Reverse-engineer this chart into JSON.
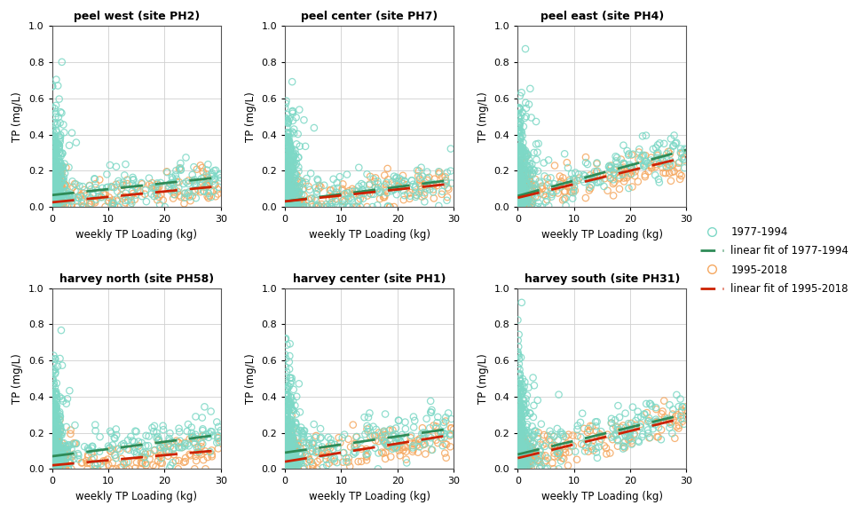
{
  "titles": [
    "peel west (site PH2)",
    "peel center (site PH7)",
    "peel east (site PH4)",
    "harvey north (site PH58)",
    "harvey center (site PH1)",
    "harvey south (site PH31)"
  ],
  "xlabel": "weekly TP Loading (kg)",
  "ylabel": "TP (mg/L)",
  "xlim": [
    0,
    30
  ],
  "ylim": [
    0,
    1
  ],
  "yticks": [
    0,
    0.2,
    0.4,
    0.6,
    0.8,
    1
  ],
  "xticks": [
    0,
    10,
    20,
    30
  ],
  "color_early": "#7DD8C6",
  "color_late": "#F5A860",
  "color_line_early": "#2E8B57",
  "color_line_late": "#CC2200",
  "figsize": [
    9.79,
    5.87
  ],
  "dpi": 100,
  "fits": {
    "peel_west": {
      "early": [
        0.065,
        0.0033
      ],
      "late": [
        0.025,
        0.003
      ]
    },
    "peel_center": {
      "early": [
        0.03,
        0.004
      ],
      "late": [
        0.03,
        0.0033
      ]
    },
    "peel_east": {
      "early": [
        0.06,
        0.0085
      ],
      "late": [
        0.05,
        0.0075
      ]
    },
    "harvey_north": {
      "early": [
        0.07,
        0.004
      ],
      "late": [
        0.02,
        0.0028
      ]
    },
    "harvey_center": {
      "early": [
        0.09,
        0.0045
      ],
      "late": [
        0.04,
        0.005
      ]
    },
    "harvey_south": {
      "early": [
        0.08,
        0.0075
      ],
      "late": [
        0.06,
        0.0075
      ]
    }
  },
  "seeds": [
    10,
    20,
    30,
    40,
    50,
    60
  ]
}
